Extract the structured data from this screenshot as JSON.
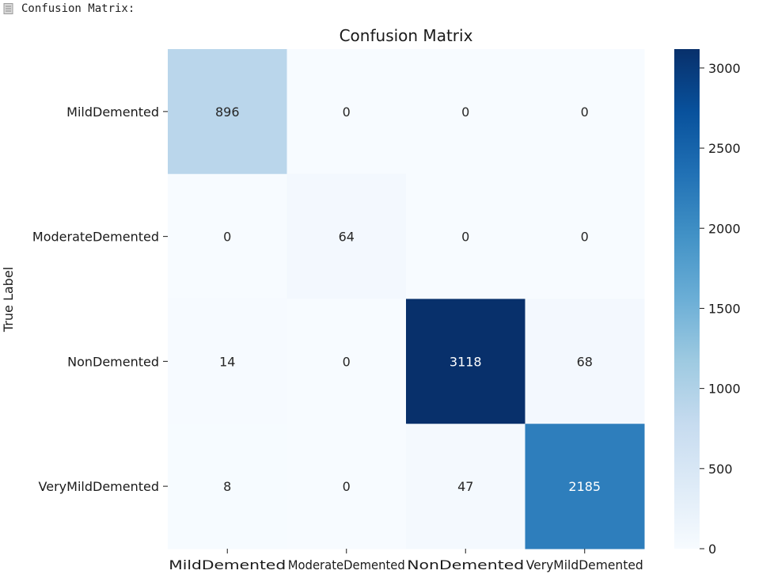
{
  "console": {
    "icon": "document-icon",
    "text": "Confusion Matrix:"
  },
  "chart_data": {
    "type": "heatmap",
    "title": "Confusion Matrix",
    "ylabel": "True Label",
    "xlabel": "",
    "row_labels": [
      "MildDemented",
      "ModerateDemented",
      "NonDemented",
      "VeryMildDemented"
    ],
    "col_labels": [
      "MildDemented",
      "ModerateDemented",
      "NonDemented",
      "VeryMildDemented"
    ],
    "values": [
      [
        896,
        0,
        0,
        0
      ],
      [
        0,
        64,
        0,
        0
      ],
      [
        14,
        0,
        3118,
        68
      ],
      [
        8,
        0,
        47,
        2185
      ]
    ],
    "colorbar": {
      "ticks": [
        0,
        500,
        1000,
        1500,
        2000,
        2500,
        3000
      ],
      "range": [
        0,
        3118
      ]
    },
    "colormap": "Blues",
    "colors": {
      "low": "#f7fbff",
      "high": "#08306b"
    }
  }
}
